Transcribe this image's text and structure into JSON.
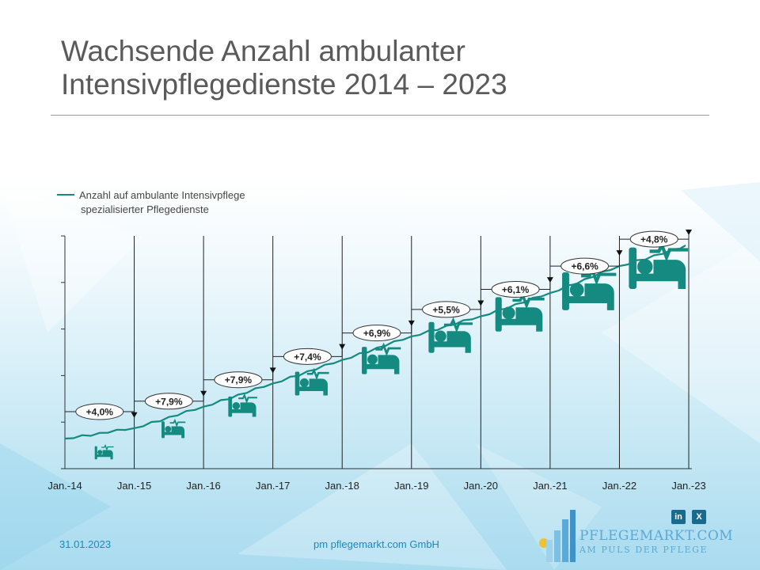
{
  "title": {
    "line1": "Wachsende Anzahl ambulanter",
    "line2": "Intensivpflegedienste 2014 – 2023"
  },
  "legend": {
    "line1": "Anzahl auf ambulante Intensivpflege",
    "line2": "spezialisierter Pflegedienste"
  },
  "chart_data": {
    "type": "line",
    "title": "Wachsende Anzahl ambulanter Intensivpflegedienste 2014 – 2023",
    "xlabel": "",
    "ylabel": "",
    "series_name": "Anzahl auf ambulante Intensivpflege spezialisierter Pflegedienste",
    "categories": [
      "Jan.-14",
      "Jan.-15",
      "Jan.-16",
      "Jan.-17",
      "Jan.-18",
      "Jan.-19",
      "Jan.-20",
      "Jan.-21",
      "Jan.-22",
      "Jan.-23"
    ],
    "index_values": [
      100,
      104.0,
      112.2,
      121.1,
      130.1,
      139.1,
      146.8,
      155.7,
      166.0,
      173.9
    ],
    "growth_labels": [
      "+4,0%",
      "+7,9%",
      "+7,9%",
      "+7,4%",
      "+6,9%",
      "+5,5%",
      "+6,1%",
      "+6,6%",
      "+4,8%"
    ],
    "line_color": "#148a80",
    "y_ticks_labeled": false
  },
  "footer": {
    "date": "31.01.2023",
    "company": "pm pflegemarkt.com GmbH"
  },
  "logo": {
    "name": "PFLEGEMARKT.COM",
    "tagline": "AM PULS DER PFLEGE"
  },
  "social": {
    "linkedin": "in",
    "xing": "X"
  }
}
